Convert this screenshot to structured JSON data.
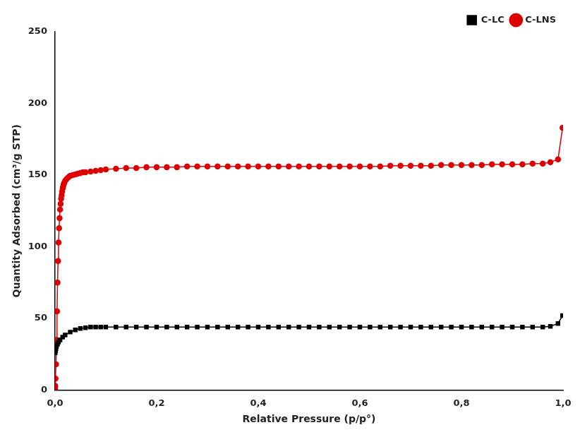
{
  "chart_data": {
    "type": "line",
    "xlabel": "Relative Pressure (p/p°)",
    "ylabel": "Quantity Adsorbed (cm³/g STP)",
    "xlim": [
      0,
      1.0
    ],
    "ylim": [
      0,
      250
    ],
    "xticks": [
      {
        "value": 0.0,
        "label": "0,0"
      },
      {
        "value": 0.2,
        "label": "0,2"
      },
      {
        "value": 0.4,
        "label": "0,4"
      },
      {
        "value": 0.6,
        "label": "0,6"
      },
      {
        "value": 0.8,
        "label": "0,8"
      },
      {
        "value": 1.0,
        "label": "1,0"
      }
    ],
    "yticks": [
      0,
      50,
      100,
      150,
      200,
      250
    ],
    "grid": false,
    "legend": "upper right",
    "series": [
      {
        "name": "C-LC",
        "color": "#000000",
        "marker": "square",
        "line_style": "solid",
        "x": [
          0.0005,
          0.001,
          0.002,
          0.003,
          0.005,
          0.007,
          0.01,
          0.015,
          0.02,
          0.03,
          0.04,
          0.05,
          0.06,
          0.07,
          0.08,
          0.09,
          0.1,
          0.12,
          0.14,
          0.16,
          0.18,
          0.2,
          0.22,
          0.24,
          0.26,
          0.28,
          0.3,
          0.32,
          0.34,
          0.36,
          0.38,
          0.4,
          0.42,
          0.44,
          0.46,
          0.48,
          0.5,
          0.52,
          0.54,
          0.56,
          0.58,
          0.6,
          0.62,
          0.64,
          0.66,
          0.68,
          0.7,
          0.72,
          0.74,
          0.76,
          0.78,
          0.8,
          0.82,
          0.84,
          0.86,
          0.88,
          0.9,
          0.92,
          0.94,
          0.96,
          0.975,
          0.99,
          0.999
        ],
        "values": [
          26.0,
          27.5,
          29.0,
          30.5,
          32.0,
          33.5,
          35.0,
          37.0,
          38.5,
          40.5,
          42.0,
          43.0,
          43.5,
          44.0,
          44.0,
          44.0,
          44.0,
          44.0,
          44.0,
          44.0,
          44.0,
          44.0,
          44.0,
          44.0,
          44.0,
          44.0,
          44.0,
          44.0,
          44.0,
          44.0,
          44.0,
          44.0,
          44.0,
          44.0,
          44.0,
          44.0,
          44.0,
          44.0,
          44.0,
          44.0,
          44.0,
          44.0,
          44.0,
          44.0,
          44.0,
          44.0,
          44.0,
          44.0,
          44.0,
          44.0,
          44.0,
          44.0,
          44.0,
          44.0,
          44.0,
          44.0,
          44.0,
          44.0,
          44.0,
          44.0,
          44.5,
          46.5,
          52.0
        ]
      },
      {
        "name": "C-LNS",
        "color": "#dd0000",
        "marker": "circle",
        "line_style": "solid",
        "x": [
          0.0002,
          0.0005,
          0.001,
          0.002,
          0.003,
          0.004,
          0.005,
          0.006,
          0.007,
          0.008,
          0.009,
          0.01,
          0.011,
          0.012,
          0.013,
          0.014,
          0.015,
          0.016,
          0.017,
          0.018,
          0.02,
          0.022,
          0.025,
          0.028,
          0.03,
          0.035,
          0.04,
          0.045,
          0.05,
          0.055,
          0.06,
          0.07,
          0.08,
          0.09,
          0.1,
          0.12,
          0.14,
          0.16,
          0.18,
          0.2,
          0.22,
          0.24,
          0.26,
          0.28,
          0.3,
          0.32,
          0.34,
          0.36,
          0.38,
          0.4,
          0.42,
          0.44,
          0.46,
          0.48,
          0.5,
          0.52,
          0.54,
          0.56,
          0.58,
          0.6,
          0.62,
          0.64,
          0.66,
          0.68,
          0.7,
          0.72,
          0.74,
          0.76,
          0.78,
          0.8,
          0.82,
          0.84,
          0.86,
          0.88,
          0.9,
          0.92,
          0.94,
          0.96,
          0.975,
          0.99,
          0.999
        ],
        "values": [
          1.0,
          3.0,
          8.0,
          18.0,
          35.0,
          55.0,
          75.0,
          90.0,
          103.0,
          113.0,
          120.0,
          126.0,
          130.0,
          133.5,
          136.0,
          138.5,
          140.5,
          142.0,
          143.5,
          144.5,
          146.0,
          147.0,
          148.0,
          149.0,
          149.5,
          150.0,
          150.5,
          151.0,
          151.5,
          152.0,
          152.0,
          152.5,
          153.0,
          153.5,
          154.0,
          154.5,
          155.0,
          155.0,
          155.5,
          155.5,
          155.5,
          155.5,
          156.0,
          156.0,
          156.0,
          156.0,
          156.0,
          156.0,
          156.0,
          156.0,
          156.0,
          156.0,
          156.0,
          156.0,
          156.0,
          156.0,
          156.0,
          156.0,
          156.0,
          156.0,
          156.0,
          156.0,
          156.5,
          156.5,
          156.5,
          156.5,
          156.5,
          157.0,
          157.0,
          157.0,
          157.0,
          157.0,
          157.5,
          157.5,
          157.5,
          157.5,
          158.0,
          158.0,
          159.0,
          161.0,
          183.0
        ]
      }
    ]
  }
}
